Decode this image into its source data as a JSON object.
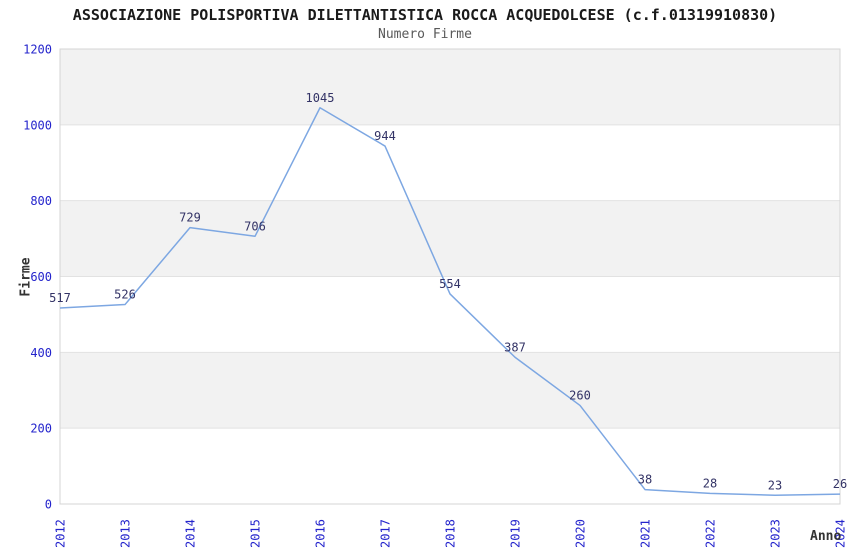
{
  "chart_data": {
    "type": "line",
    "title": "ASSOCIAZIONE POLISPORTIVA DILETTANTISTICA ROCCA ACQUEDOLCESE (c.f.01319910830)",
    "subtitle": "Numero Firme",
    "xlabel": "Anno",
    "ylabel": "Firme",
    "categories": [
      "2012",
      "2013",
      "2014",
      "2015",
      "2016",
      "2017",
      "2018",
      "2019",
      "2020",
      "2021",
      "2022",
      "2023",
      "2024"
    ],
    "values": [
      517,
      526,
      729,
      706,
      1045,
      944,
      554,
      387,
      260,
      38,
      28,
      23,
      26
    ],
    "ylim": [
      0,
      1200
    ],
    "ytick_step": 200,
    "yticks": [
      0,
      200,
      400,
      600,
      800,
      1000,
      1200
    ],
    "grid": "alternating horizontal bands with light gridlines",
    "legend": "none",
    "data_labels_shown": true,
    "colors": {
      "line": "#7da7e2",
      "tick_labels": "#2424cc",
      "data_labels": "#333366",
      "band_fill": "#f2f2f2",
      "plot_border": "#d4d4d4",
      "gridline": "#e2e2e2",
      "title": "#1a1a1a",
      "subtitle": "#595959",
      "axis_titles": "#333333",
      "background": "#ffffff"
    }
  }
}
